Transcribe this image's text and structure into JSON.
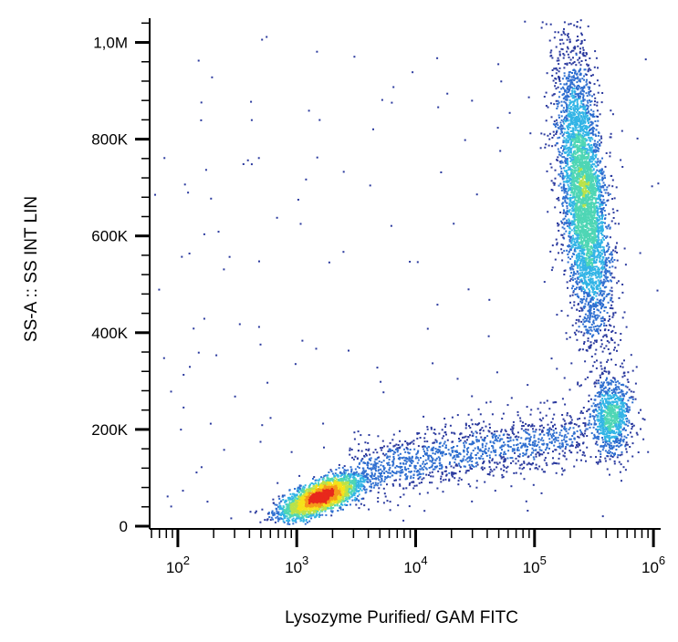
{
  "chart_data": {
    "type": "scatter",
    "xlabel": "Lysozyme Purified/ GAM FITC",
    "ylabel": "SS-A :: SS INT LIN",
    "x_scale": "log",
    "xlim": [
      60,
      1150000
    ],
    "ylim": [
      0,
      1050000
    ],
    "x_ticks": [
      {
        "value": 100,
        "base": "10",
        "exp": "2"
      },
      {
        "value": 1000,
        "base": "10",
        "exp": "3"
      },
      {
        "value": 10000,
        "base": "10",
        "exp": "4"
      },
      {
        "value": 100000,
        "base": "10",
        "exp": "5"
      },
      {
        "value": 1000000,
        "base": "10",
        "exp": "6"
      }
    ],
    "y_ticks": [
      {
        "value": 0,
        "label": "0"
      },
      {
        "value": 200000,
        "label": "200K"
      },
      {
        "value": 400000,
        "label": "400K"
      },
      {
        "value": 600000,
        "label": "600K"
      },
      {
        "value": 800000,
        "label": "800K"
      },
      {
        "value": 1000000,
        "label": "1,0M"
      }
    ],
    "grid": false,
    "density_colormap": [
      "#2b3a9e",
      "#2f6fd0",
      "#33b5e6",
      "#4fd6b5",
      "#b9e24a",
      "#f5e21a",
      "#f59a1a",
      "#e8281c"
    ],
    "populations": [
      {
        "x_center": 1600,
        "y_center": 60000,
        "density": "very high",
        "color": "#e8281c"
      },
      {
        "x_center": 260000,
        "y_center": 680000,
        "density": "high",
        "color": "#b9e24a"
      },
      {
        "x_center": 450000,
        "y_center": 225000,
        "density": "medium",
        "color": "#4fd6b5"
      },
      {
        "x_center": 20000,
        "y_center": 140000,
        "density": "low",
        "color": "#2b3a9e"
      }
    ]
  }
}
